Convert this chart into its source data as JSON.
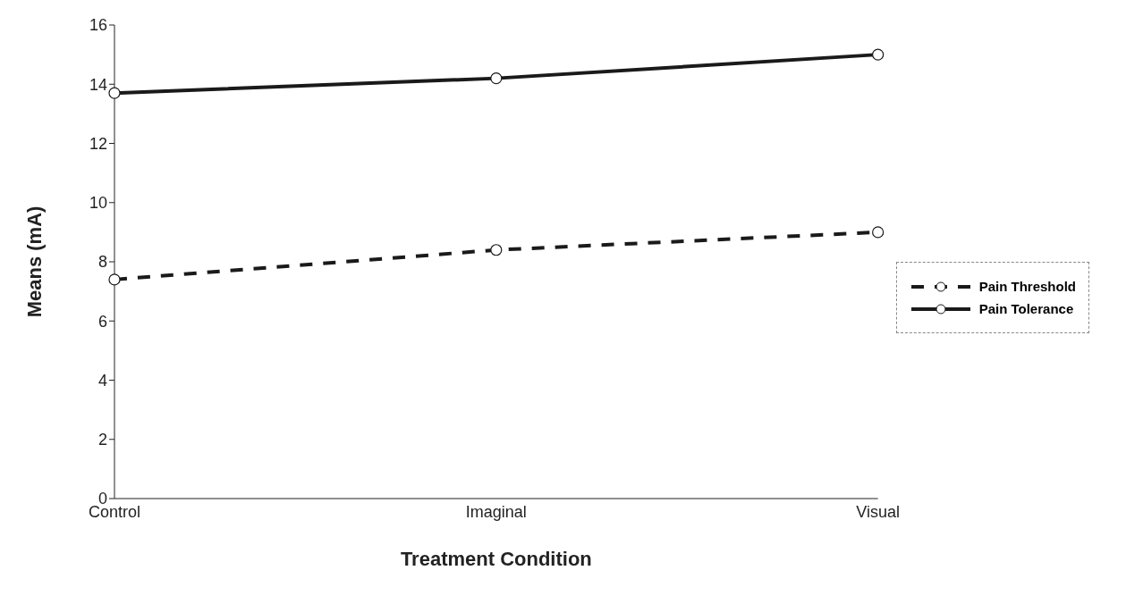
{
  "chart_data": {
    "type": "line",
    "xlabel": "Treatment Condition",
    "ylabel": "Means  (mA)",
    "categories": [
      "Control",
      "Imaginal",
      "Visual"
    ],
    "series": [
      {
        "name": "Pain Threshold",
        "color": "#1a1a1a",
        "values": [
          7.4,
          8.4,
          9.0
        ],
        "line_style": "dashed"
      },
      {
        "name": "Pain Tolerance",
        "color": "#1a1a1a",
        "values": [
          13.7,
          14.2,
          15.0
        ],
        "line_style": "solid"
      }
    ],
    "ylim": [
      0,
      16
    ],
    "yticks": [
      0,
      2,
      4,
      6,
      8,
      10,
      12,
      14,
      16
    ],
    "grid": false,
    "legend": "right",
    "marker": "circle"
  }
}
